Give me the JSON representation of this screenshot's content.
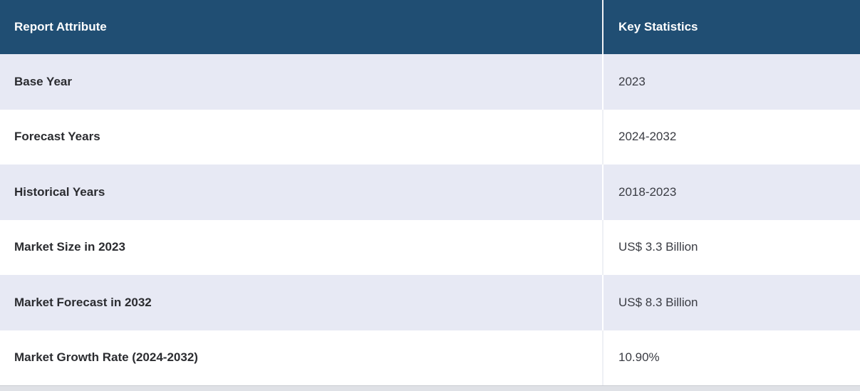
{
  "table": {
    "name": "report-summary-table",
    "columns": [
      {
        "label": "Report Attribute"
      },
      {
        "label": "Key Statistics"
      }
    ],
    "rows": [
      {
        "attribute": "Base Year",
        "value": "2023"
      },
      {
        "attribute": "Forecast Years",
        "value": "2024-2032"
      },
      {
        "attribute": "Historical Years",
        "value": "2018-2023"
      },
      {
        "attribute": "Market Size in 2023",
        "value": "US$ 3.3 Billion"
      },
      {
        "attribute": "Market Forecast in 2032",
        "value": "US$ 8.3 Billion"
      },
      {
        "attribute": "Market Growth Rate (2024-2032)",
        "value": "10.90%"
      }
    ]
  },
  "colors": {
    "header_background": "#204e73",
    "header_text": "#ffffff",
    "row_alt_background": "#e7e9f4",
    "row_background": "#ffffff",
    "attribute_text": "#2b2c30",
    "value_text": "#3a3c43",
    "bottom_strip": "#dfe1e6"
  }
}
